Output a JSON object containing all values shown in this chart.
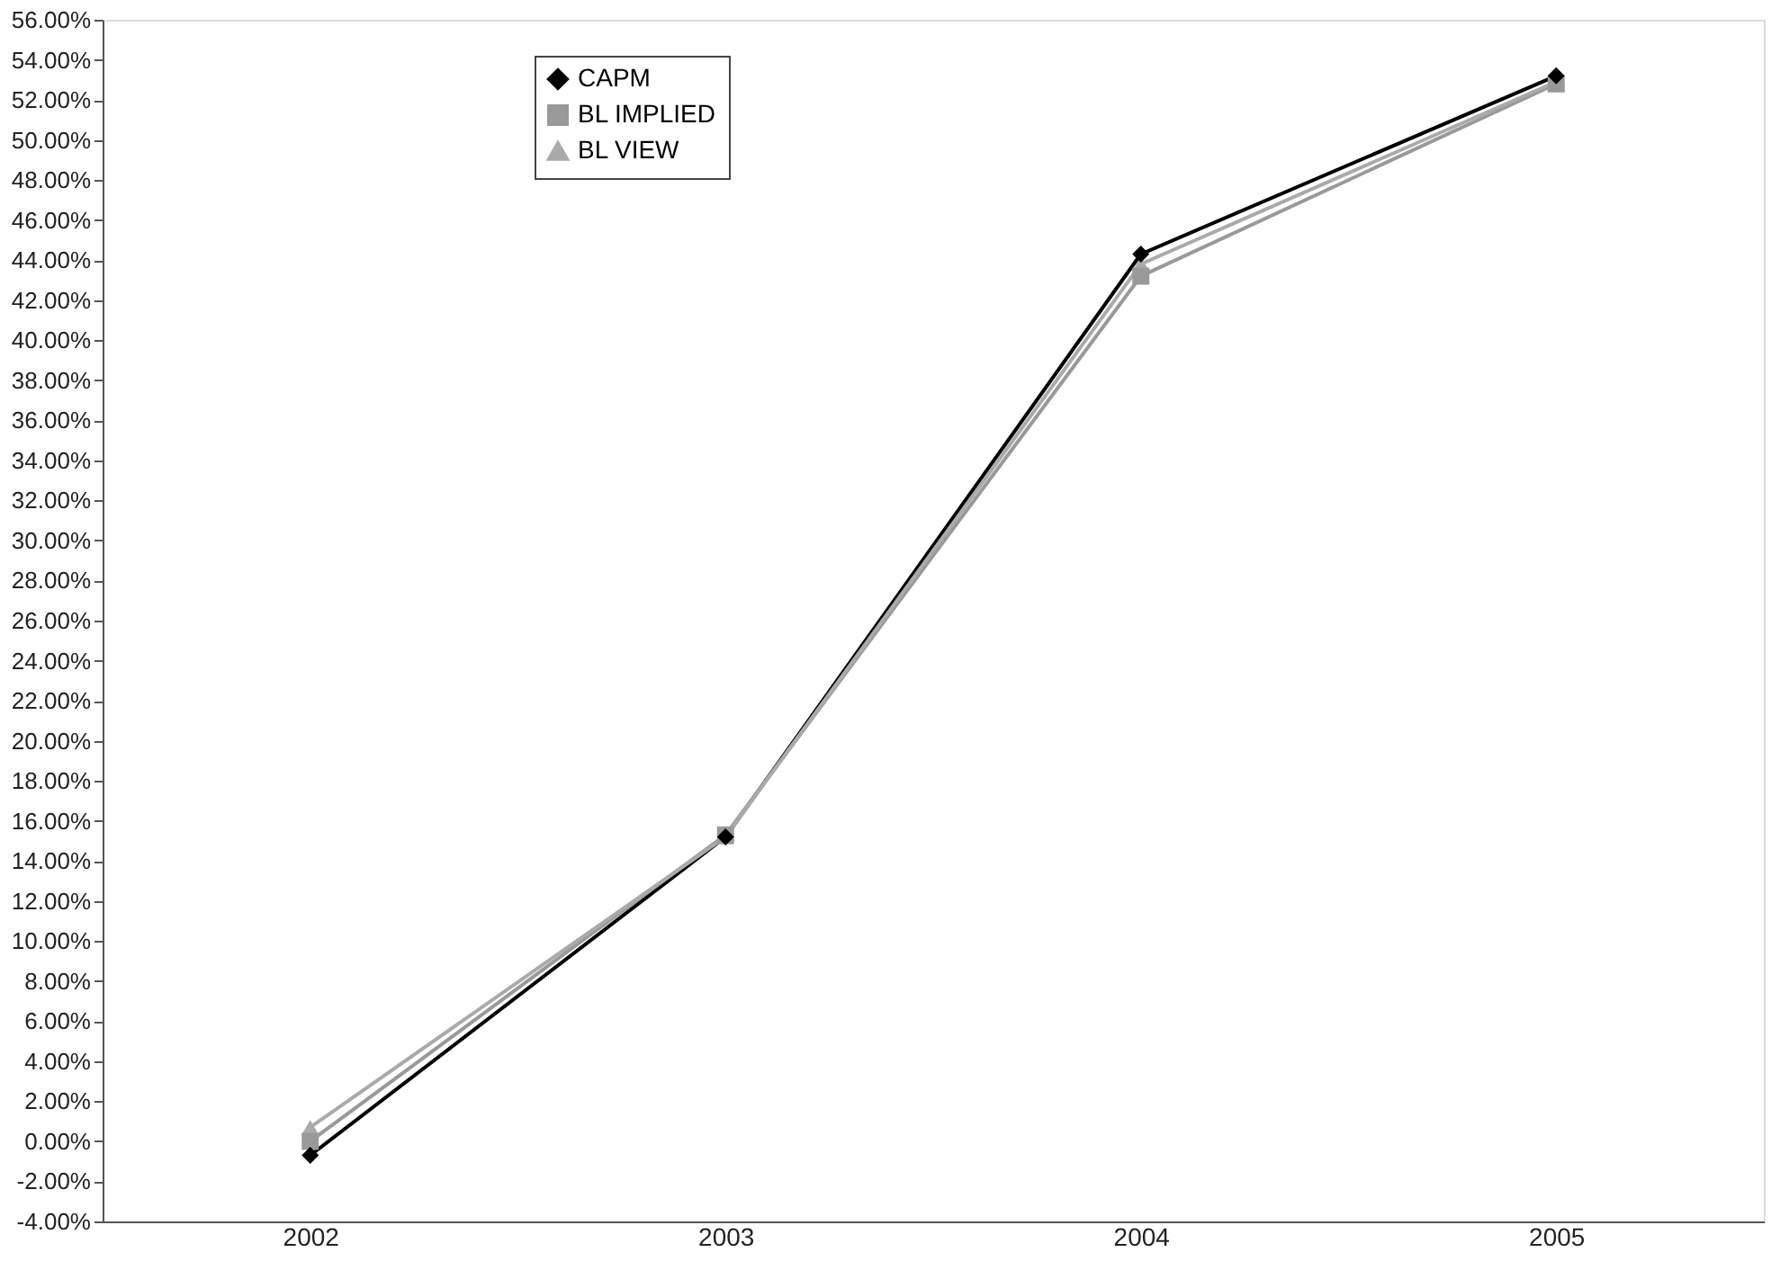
{
  "chart_data": {
    "type": "line",
    "categories": [
      "2002",
      "2003",
      "2004",
      "2005"
    ],
    "series": [
      {
        "name": "CAPM",
        "color": "#000000",
        "marker": "diamond",
        "values": [
          -0.7,
          15.2,
          44.3,
          53.2
        ]
      },
      {
        "name": "BL IMPLIED",
        "color": "#999999",
        "marker": "square",
        "values": [
          0.0,
          15.3,
          43.2,
          52.8
        ]
      },
      {
        "name": "BL VIEW",
        "color": "#aaaaaa",
        "marker": "triangle",
        "values": [
          0.7,
          15.2,
          43.8,
          52.9
        ]
      }
    ],
    "ylim": [
      -4,
      56
    ],
    "yticks": [
      {
        "value": -4,
        "label": "-4.00%"
      },
      {
        "value": -2,
        "label": "-2.00%"
      },
      {
        "value": 0,
        "label": "0.00%"
      },
      {
        "value": 2,
        "label": "2.00%"
      },
      {
        "value": 4,
        "label": "4.00%"
      },
      {
        "value": 6,
        "label": "6.00%"
      },
      {
        "value": 8,
        "label": "8.00%"
      },
      {
        "value": 10,
        "label": "10.00%"
      },
      {
        "value": 12,
        "label": "12.00%"
      },
      {
        "value": 14,
        "label": "14.00%"
      },
      {
        "value": 16,
        "label": "16.00%"
      },
      {
        "value": 18,
        "label": "18.00%"
      },
      {
        "value": 20,
        "label": "20.00%"
      },
      {
        "value": 22,
        "label": "22.00%"
      },
      {
        "value": 24,
        "label": "24.00%"
      },
      {
        "value": 26,
        "label": "26.00%"
      },
      {
        "value": 28,
        "label": "28.00%"
      },
      {
        "value": 30,
        "label": "30.00%"
      },
      {
        "value": 32,
        "label": "32.00%"
      },
      {
        "value": 34,
        "label": "34.00%"
      },
      {
        "value": 36,
        "label": "36.00%"
      },
      {
        "value": 38,
        "label": "38.00%"
      },
      {
        "value": 40,
        "label": "40.00%"
      },
      {
        "value": 42,
        "label": "42.00%"
      },
      {
        "value": 44,
        "label": "44.00%"
      },
      {
        "value": 46,
        "label": "46.00%"
      },
      {
        "value": 48,
        "label": "48.00%"
      },
      {
        "value": 50,
        "label": "50.00%"
      },
      {
        "value": 52,
        "label": "52.00%"
      },
      {
        "value": 54,
        "label": "54.00%"
      },
      {
        "value": 56,
        "label": "56.00%"
      }
    ],
    "grid": false,
    "legend": "top",
    "line_style": "solid"
  }
}
